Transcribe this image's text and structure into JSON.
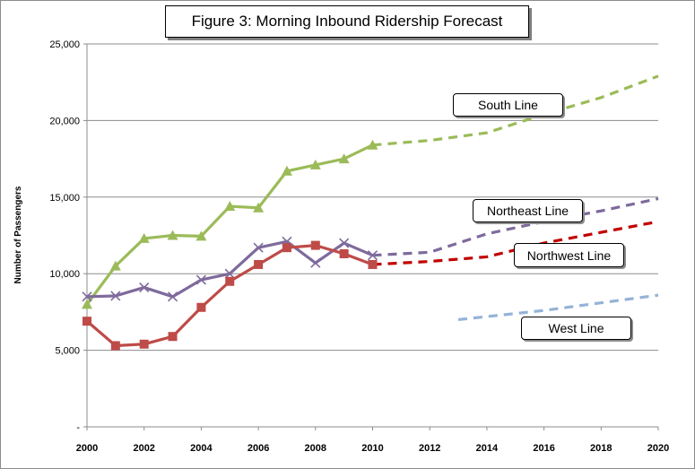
{
  "chart_data": {
    "type": "line",
    "title": "Figure 3: Morning Inbound Ridership Forecast",
    "ylabel": "Number of Passengers",
    "xlim": [
      2000,
      2020
    ],
    "ylim": [
      0,
      25000
    ],
    "x_ticks": [
      "2000",
      "2002",
      "2004",
      "2006",
      "2008",
      "2010",
      "2012",
      "2014",
      "2016",
      "2018",
      "2020"
    ],
    "y_ticks": [
      "-",
      "5,000",
      "10,000",
      "15,000",
      "20,000",
      "25,000"
    ],
    "grid": "horizontal",
    "series": [
      {
        "name": "South Line",
        "color": "#9bbb59",
        "marker": "triangle",
        "actual": {
          "x": [
            2000,
            2001,
            2002,
            2003,
            2004,
            2005,
            2006,
            2007,
            2008,
            2009,
            2010
          ],
          "y": [
            8000,
            10500,
            12300,
            12500,
            12450,
            14400,
            14300,
            16700,
            17100,
            17500,
            18400
          ]
        },
        "forecast": {
          "x": [
            2010,
            2012,
            2014,
            2016,
            2018,
            2020
          ],
          "y": [
            18400,
            18700,
            19200,
            20400,
            21500,
            22900
          ]
        }
      },
      {
        "name": "Northeast Line",
        "color": "#7e6a9c",
        "marker": "x",
        "actual": {
          "x": [
            2000,
            2001,
            2002,
            2003,
            2004,
            2005,
            2006,
            2007,
            2008,
            2009,
            2010
          ],
          "y": [
            8500,
            8550,
            9100,
            8500,
            9600,
            10000,
            11700,
            12100,
            10700,
            12000,
            11200
          ]
        },
        "forecast": {
          "x": [
            2010,
            2012,
            2014,
            2016,
            2018,
            2020
          ],
          "y": [
            11200,
            11400,
            12600,
            13400,
            14100,
            14900
          ]
        }
      },
      {
        "name": "Northwest Line",
        "color": "#be4b48",
        "forecast_color": "#c00000",
        "marker": "square",
        "actual": {
          "x": [
            2000,
            2001,
            2002,
            2003,
            2004,
            2005,
            2006,
            2007,
            2008,
            2009,
            2010
          ],
          "y": [
            6900,
            5300,
            5400,
            5900,
            7800,
            9500,
            10600,
            11700,
            11850,
            11300,
            10600
          ]
        },
        "forecast": {
          "x": [
            2010,
            2012,
            2014,
            2016,
            2018,
            2020
          ],
          "y": [
            10600,
            10800,
            11100,
            12000,
            12700,
            13400
          ]
        }
      },
      {
        "name": "West Line",
        "color": "#95b3d7",
        "marker": "none",
        "actual": {
          "x": [],
          "y": []
        },
        "forecast": {
          "x": [
            2013,
            2016,
            2018,
            2020
          ],
          "y": [
            7000,
            7600,
            8100,
            8600
          ]
        }
      }
    ]
  }
}
